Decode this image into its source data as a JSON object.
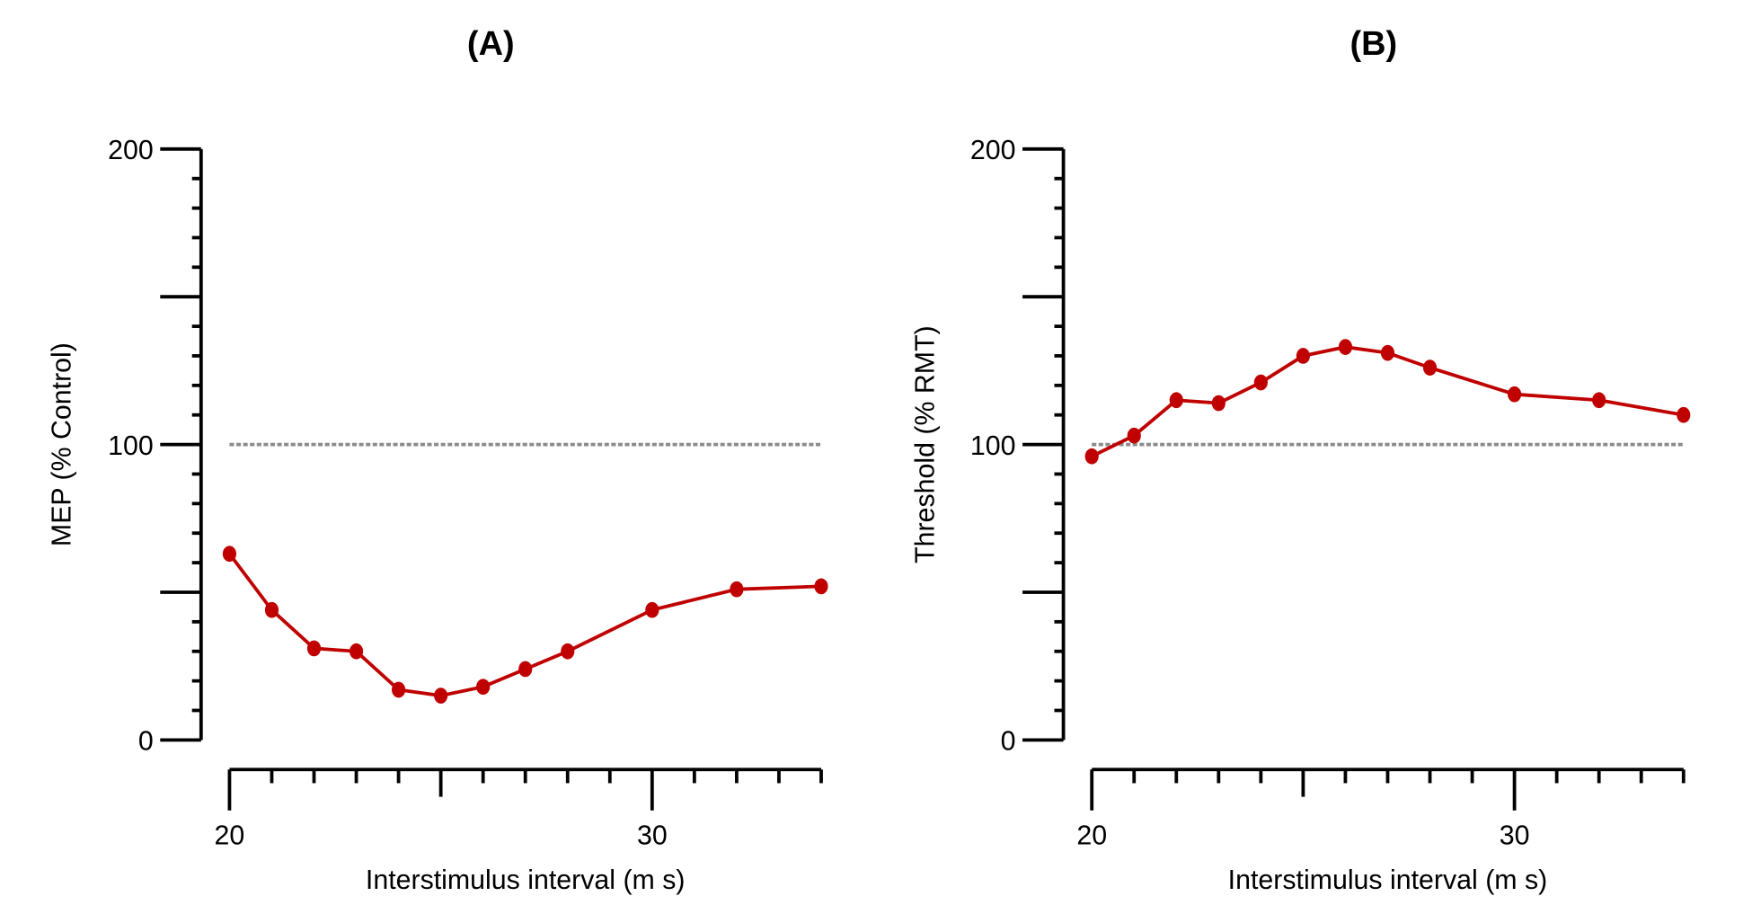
{
  "chart_data": [
    {
      "type": "line",
      "title": "(A)",
      "xlabel": "Interstimulus interval (m s)",
      "ylabel": "MEP (% Control)",
      "xlim": [
        20,
        34
      ],
      "ylim": [
        0,
        200
      ],
      "x_tick_labels": [
        "20",
        "30"
      ],
      "y_tick_labels": [
        "0",
        "100",
        "200"
      ],
      "reference_line": 100,
      "series": [
        {
          "name": "MEP",
          "color": "#c00000",
          "x": [
            20,
            21,
            22,
            23,
            24,
            25,
            26,
            27,
            28,
            30,
            32,
            34
          ],
          "y": [
            63,
            44,
            31,
            30,
            17,
            15,
            18,
            24,
            30,
            44,
            51,
            52
          ]
        }
      ]
    },
    {
      "type": "line",
      "title": "(B)",
      "xlabel": "Interstimulus interval (m s)",
      "ylabel": "Threshold (% RMT)",
      "xlim": [
        20,
        34
      ],
      "ylim": [
        0,
        200
      ],
      "x_tick_labels": [
        "20",
        "30"
      ],
      "y_tick_labels": [
        "0",
        "100",
        "200"
      ],
      "reference_line": 100,
      "series": [
        {
          "name": "Threshold",
          "color": "#c00000",
          "x": [
            20,
            21,
            22,
            23,
            24,
            25,
            26,
            27,
            28,
            30,
            32,
            34
          ],
          "y": [
            96,
            103,
            115,
            114,
            121,
            130,
            133,
            131,
            126,
            117,
            115,
            110
          ]
        }
      ]
    }
  ]
}
